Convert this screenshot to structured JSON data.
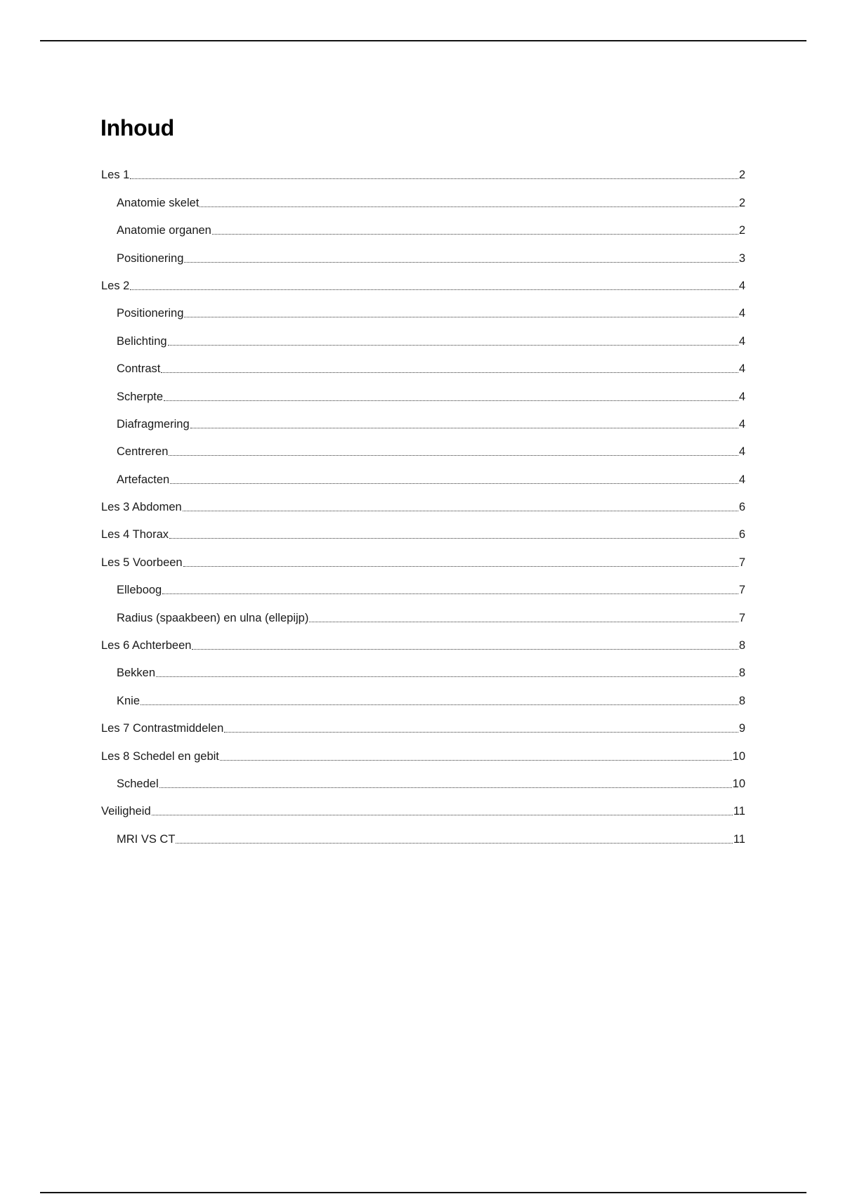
{
  "title": "Inhoud",
  "toc": [
    {
      "label": "Les 1",
      "page": "2",
      "level": 1
    },
    {
      "label": "Anatomie skelet",
      "page": "2",
      "level": 2
    },
    {
      "label": "Anatomie organen",
      "page": "2",
      "level": 2
    },
    {
      "label": "Positionering",
      "page": "3",
      "level": 2
    },
    {
      "label": "Les 2",
      "page": "4",
      "level": 1
    },
    {
      "label": "Positionering",
      "page": "4",
      "level": 2
    },
    {
      "label": "Belichting",
      "page": "4",
      "level": 2
    },
    {
      "label": "Contrast",
      "page": "4",
      "level": 2
    },
    {
      "label": "Scherpte",
      "page": "4",
      "level": 2
    },
    {
      "label": "Diafragmering",
      "page": "4",
      "level": 2
    },
    {
      "label": "Centreren",
      "page": "4",
      "level": 2
    },
    {
      "label": "Artefacten",
      "page": "4",
      "level": 2
    },
    {
      "label": "Les 3 Abdomen",
      "page": "6",
      "level": 1
    },
    {
      "label": "Les 4 Thorax",
      "page": "6",
      "level": 1
    },
    {
      "label": "Les 5 Voorbeen",
      "page": "7",
      "level": 1
    },
    {
      "label": "Elleboog",
      "page": "7",
      "level": 2
    },
    {
      "label": "Radius (spaakbeen) en ulna (ellepijp)",
      "page": "7",
      "level": 2
    },
    {
      "label": "Les 6 Achterbeen",
      "page": "8",
      "level": 1
    },
    {
      "label": "Bekken",
      "page": "8",
      "level": 2
    },
    {
      "label": "Knie",
      "page": "8",
      "level": 2
    },
    {
      "label": "Les 7 Contrastmiddelen",
      "page": "9",
      "level": 1
    },
    {
      "label": "Les 8 Schedel en gebit",
      "page": "10",
      "level": 1
    },
    {
      "label": "Schedel",
      "page": "10",
      "level": 2
    },
    {
      "label": "Veiligheid",
      "page": "11",
      "level": 1
    },
    {
      "label": "MRI VS CT",
      "page": "11",
      "level": 2
    }
  ]
}
